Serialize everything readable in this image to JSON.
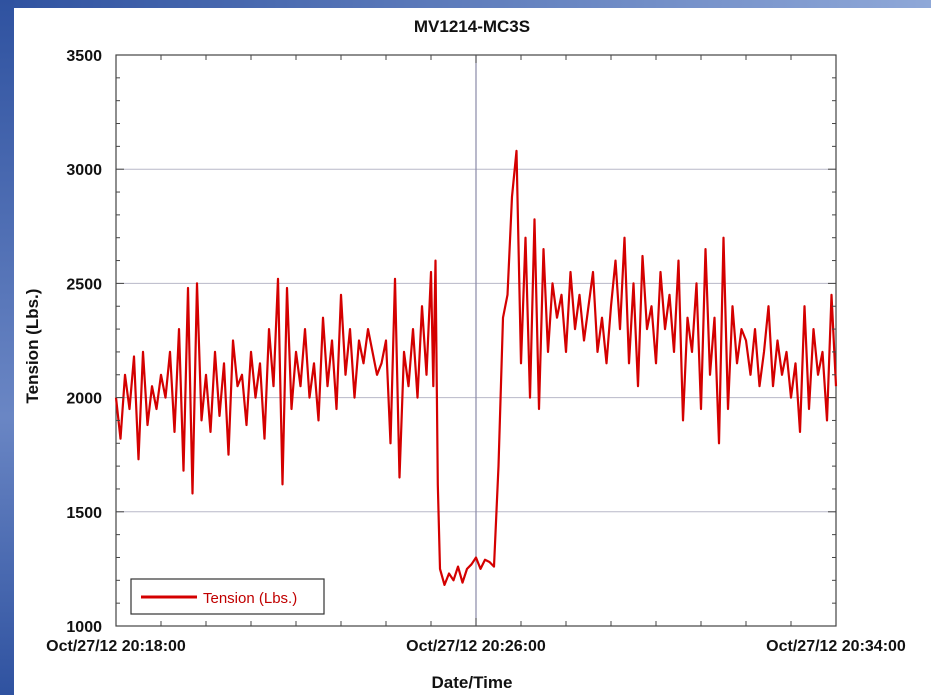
{
  "chart_data": {
    "type": "line",
    "title": "MV1214-MC3S",
    "xlabel": "Date/Time",
    "ylabel": "Tension (Lbs.)",
    "ylim": [
      1000,
      3500
    ],
    "y_ticks": [
      "1000",
      "1500",
      "2000",
      "2500",
      "3000",
      "3500"
    ],
    "x_ticks": [
      "Oct/27/12 20:18:00",
      "Oct/27/12 20:26:00",
      "Oct/27/12 20:34:00"
    ],
    "xlim_minutes": [
      0,
      16
    ],
    "grid": true,
    "legend_position": "bottom-left",
    "series": [
      {
        "name": "Tension (Lbs.)",
        "color": "#d40000",
        "x_minutes": [
          0,
          0.1,
          0.2,
          0.3,
          0.4,
          0.5,
          0.6,
          0.7,
          0.8,
          0.9,
          1.0,
          1.1,
          1.2,
          1.3,
          1.4,
          1.5,
          1.6,
          1.7,
          1.8,
          1.9,
          2.0,
          2.1,
          2.2,
          2.3,
          2.4,
          2.5,
          2.6,
          2.7,
          2.8,
          2.9,
          3.0,
          3.1,
          3.2,
          3.3,
          3.4,
          3.5,
          3.6,
          3.7,
          3.8,
          3.9,
          4.0,
          4.1,
          4.2,
          4.3,
          4.4,
          4.5,
          4.6,
          4.7,
          4.8,
          4.9,
          5.0,
          5.1,
          5.2,
          5.3,
          5.4,
          5.5,
          5.6,
          5.7,
          5.8,
          5.9,
          6.0,
          6.1,
          6.2,
          6.3,
          6.4,
          6.5,
          6.6,
          6.7,
          6.8,
          6.9,
          7.0,
          7.05,
          7.1,
          7.15,
          7.2,
          7.3,
          7.4,
          7.5,
          7.6,
          7.7,
          7.8,
          7.9,
          8.0,
          8.1,
          8.2,
          8.3,
          8.4,
          8.5,
          8.6,
          8.7,
          8.8,
          8.9,
          9.0,
          9.1,
          9.2,
          9.3,
          9.4,
          9.5,
          9.6,
          9.7,
          9.8,
          9.9,
          10.0,
          10.1,
          10.2,
          10.3,
          10.4,
          10.5,
          10.6,
          10.7,
          10.8,
          10.9,
          11.0,
          11.1,
          11.2,
          11.3,
          11.4,
          11.5,
          11.6,
          11.7,
          11.8,
          11.9,
          12.0,
          12.1,
          12.2,
          12.3,
          12.4,
          12.5,
          12.6,
          12.7,
          12.8,
          12.9,
          13.0,
          13.1,
          13.2,
          13.3,
          13.4,
          13.5,
          13.6,
          13.7,
          13.8,
          13.9,
          14.0,
          14.1,
          14.2,
          14.3,
          14.4,
          14.5,
          14.6,
          14.7,
          14.8,
          14.9,
          15.0,
          15.1,
          15.2,
          15.3,
          15.4,
          15.5,
          15.6,
          15.7,
          15.8,
          15.9,
          16.0
        ],
        "y": [
          2000,
          1820,
          2100,
          1950,
          2180,
          1730,
          2200,
          1880,
          2050,
          1950,
          2100,
          2000,
          2200,
          1850,
          2300,
          1680,
          2480,
          1580,
          2500,
          1900,
          2100,
          1850,
          2200,
          1920,
          2150,
          1750,
          2250,
          2050,
          2100,
          1880,
          2200,
          2000,
          2150,
          1820,
          2300,
          2050,
          2520,
          1620,
          2480,
          1950,
          2200,
          2050,
          2300,
          2000,
          2150,
          1900,
          2350,
          2050,
          2250,
          1950,
          2450,
          2100,
          2300,
          2000,
          2250,
          2150,
          2300,
          2200,
          2100,
          2150,
          2250,
          1800,
          2520,
          1650,
          2200,
          2050,
          2300,
          2000,
          2400,
          2100,
          2550,
          2050,
          2600,
          1620,
          1250,
          1180,
          1230,
          1200,
          1260,
          1190,
          1250,
          1270,
          1300,
          1250,
          1290,
          1280,
          1260,
          1700,
          2350,
          2450,
          2880,
          3080,
          2150,
          2700,
          2000,
          2780,
          1950,
          2650,
          2200,
          2500,
          2350,
          2450,
          2200,
          2550,
          2300,
          2450,
          2250,
          2400,
          2550,
          2200,
          2350,
          2150,
          2400,
          2600,
          2300,
          2700,
          2150,
          2500,
          2050,
          2620,
          2300,
          2400,
          2150,
          2550,
          2300,
          2450,
          2200,
          2600,
          1900,
          2350,
          2200,
          2500,
          1950,
          2650,
          2100,
          2350,
          1800,
          2700,
          1950,
          2400,
          2150,
          2300,
          2250,
          2100,
          2300,
          2050,
          2200,
          2400,
          2050,
          2250,
          2100,
          2200,
          2000,
          2150,
          1850,
          2400,
          1950,
          2300,
          2100,
          2200,
          1900,
          2450,
          2050
        ]
      }
    ]
  }
}
